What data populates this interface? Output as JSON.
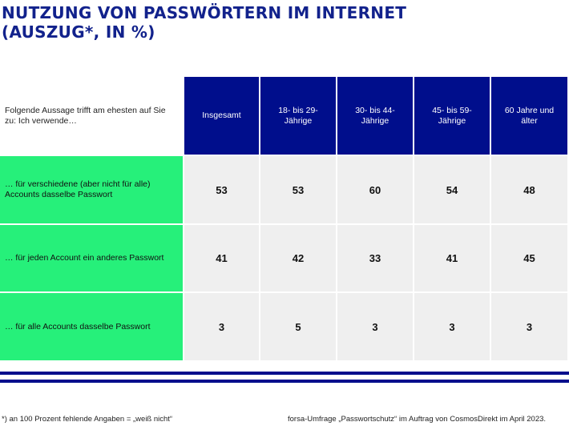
{
  "title_lines": [
    "NUTZUNG VON PASSWÖRTERN IM INTERNET",
    "(AUSZUG*, IN %)"
  ],
  "colors": {
    "title": "#12228c",
    "header": "#000e8c",
    "row_label": "#26f07a",
    "value_cell": "#efefef",
    "rule": "#000e8c"
  },
  "chart_data": {
    "type": "table",
    "title": "NUTZUNG VON PASSWÖRTERN IM INTERNET (AUSZUG*, IN %)",
    "header_label": "Folgende Aussage trifft am ehesten auf Sie zu: Ich verwende…",
    "columns": [
      "Insgesamt",
      "18- bis 29-Jährige",
      "30- bis 44-Jährige",
      "45- bis 59-Jährige",
      "60 Jahre und älter"
    ],
    "rows": [
      {
        "label": "… für verschiedene (aber nicht für alle) Accounts dasselbe Passwort",
        "values": [
          "53",
          "53",
          "60",
          "54",
          "48"
        ]
      },
      {
        "label": "… für jeden Account ein anderes Passwort",
        "values": [
          "41",
          "42",
          "33",
          "41",
          "45"
        ]
      },
      {
        "label": "… für alle Accounts dasselbe Passwort",
        "values": [
          "3",
          "5",
          "3",
          "3",
          "3"
        ]
      }
    ]
  },
  "footnote": "*) an 100 Prozent fehlende Angaben = „weiß nicht“",
  "source": "forsa-Umfrage „Passwortschutz“ im Auftrag von CosmosDirekt im April 2023."
}
